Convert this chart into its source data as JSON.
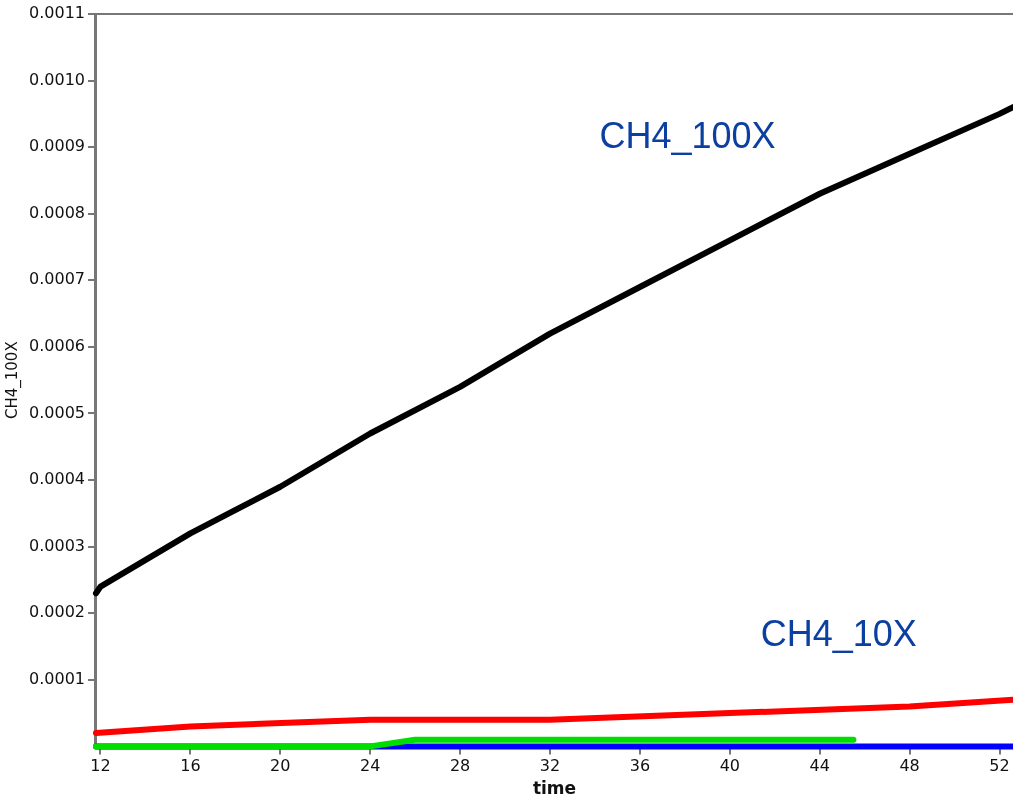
{
  "chart_data": {
    "type": "line",
    "xlabel": "time",
    "ylabel": "CH4_100X",
    "series": [
      {
        "color": "#000000",
        "x": [
          11.8,
          12,
          16,
          20,
          24,
          28,
          32,
          36,
          40,
          44,
          48,
          52,
          52.6
        ],
        "values": [
          0.00023,
          0.00024,
          0.00032,
          0.00039,
          0.00047,
          0.00054,
          0.00062,
          0.00069,
          0.00076,
          0.00083,
          0.00089,
          0.00095,
          0.00096
        ]
      },
      {
        "color": "#ff0000",
        "x": [
          11.8,
          16,
          24,
          32,
          40,
          48,
          52.6
        ],
        "values": [
          2e-05,
          3e-05,
          4e-05,
          4e-05,
          5e-05,
          6e-05,
          7e-05
        ]
      },
      {
        "color": "#00dd00",
        "x": [
          11.8,
          24,
          26,
          45.5
        ],
        "values": [
          0,
          0,
          1e-05,
          1e-05
        ]
      },
      {
        "color": "#0000ff",
        "x": [
          11.8,
          52.6
        ],
        "values": [
          0,
          0
        ]
      }
    ],
    "xlim": [
      11.8,
      52.6
    ],
    "xticks": [
      12,
      16,
      20,
      24,
      28,
      32,
      36,
      40,
      44,
      48,
      52
    ],
    "ylim": [
      0,
      0.0011
    ],
    "yticks": [
      {
        "value": 0.0001,
        "label": "0.0001"
      },
      {
        "value": 0.0002,
        "label": "0.0002"
      },
      {
        "value": 0.0003,
        "label": "0.0003"
      },
      {
        "value": 0.0004,
        "label": "0.0004"
      },
      {
        "value": 0.0005,
        "label": "0.0005"
      },
      {
        "value": 0.0006,
        "label": "0.0006"
      },
      {
        "value": 0.0007,
        "label": "0.0007"
      },
      {
        "value": 0.0008,
        "label": "0.0008"
      },
      {
        "value": 0.0009,
        "label": "0.0009"
      },
      {
        "value": 0.001,
        "label": "0.0010"
      },
      {
        "value": 0.0011,
        "label": "0.0011"
      }
    ],
    "annotations": [
      "CH4_100X",
      "CH4_10X"
    ],
    "grid": false,
    "legend": false,
    "marker": "none",
    "line_style": "solid"
  }
}
